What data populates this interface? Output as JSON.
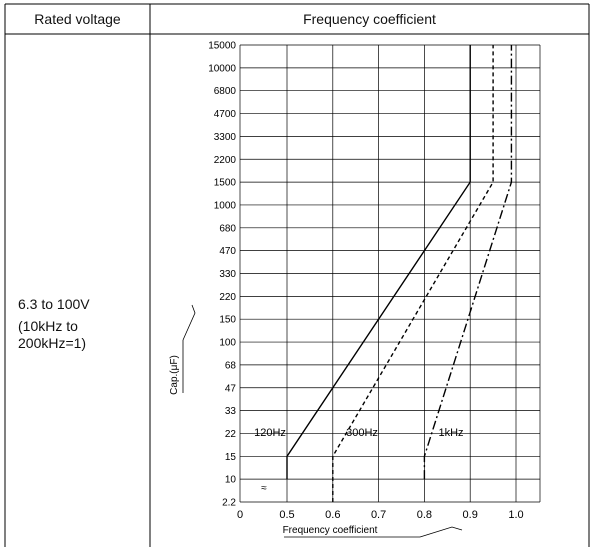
{
  "table": {
    "header_rated_voltage": "Rated voltage",
    "header_frequency_coefficient": "Frequency coefficient",
    "rated_voltage_value": "6.3 to 100V",
    "rated_voltage_note_line1": "(10kHz to",
    "rated_voltage_note_line2": "200kHz=1)"
  },
  "chart_data": {
    "type": "line",
    "xlabel": "Frequency coefficient",
    "ylabel": "Cap.(μF)",
    "xlim": [
      0,
      1.0
    ],
    "x_ticks": [
      "0",
      "0.5",
      "0.6",
      "0.7",
      "0.8",
      "0.9",
      "1.0"
    ],
    "x_axis_break": "≈",
    "y_ticks": [
      "2.2",
      "10",
      "15",
      "22",
      "33",
      "47",
      "68",
      "100",
      "150",
      "220",
      "330",
      "470",
      "680",
      "1000",
      "1500",
      "2200",
      "3300",
      "4700",
      "6800",
      "10000",
      "15000"
    ],
    "series": [
      {
        "name": "120Hz",
        "style": "solid",
        "points": [
          {
            "x": 0.5,
            "y": 10
          },
          {
            "x": 0.5,
            "y": 15
          },
          {
            "x": 0.9,
            "y": 1500
          },
          {
            "x": 0.9,
            "y": 15000
          }
        ]
      },
      {
        "name": "300Hz",
        "style": "dashed",
        "points": [
          {
            "x": 0.6,
            "y": 2.2
          },
          {
            "x": 0.6,
            "y": 15
          },
          {
            "x": 0.95,
            "y": 1500
          },
          {
            "x": 0.95,
            "y": 15000
          }
        ]
      },
      {
        "name": "1kHz",
        "style": "dashdot",
        "points": [
          {
            "x": 0.8,
            "y": 10
          },
          {
            "x": 0.8,
            "y": 15
          },
          {
            "x": 0.99,
            "y": 1500
          },
          {
            "x": 0.99,
            "y": 15000
          }
        ]
      }
    ],
    "grid": true
  }
}
